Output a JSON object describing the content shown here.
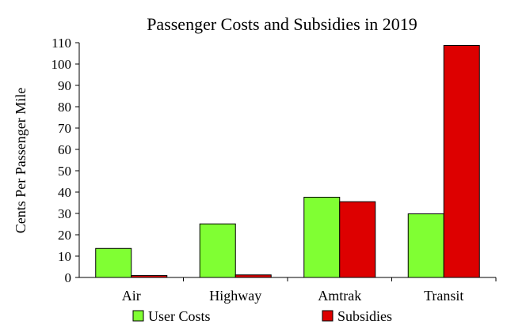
{
  "chart_data": {
    "type": "bar",
    "title": "Passenger Costs and Subsidies in 2019",
    "xlabel": "",
    "ylabel": "Cents Per Passenger Mile",
    "ylim": [
      0,
      110
    ],
    "yticks": [
      0,
      10,
      20,
      30,
      40,
      50,
      60,
      70,
      80,
      90,
      100,
      110
    ],
    "categories": [
      "Air",
      "Highway",
      "Amtrak",
      "Transit"
    ],
    "series": [
      {
        "name": "User Costs",
        "color": "#80ff33",
        "values": [
          13.6,
          25.1,
          37.6,
          29.8
        ]
      },
      {
        "name": "Subsidies",
        "color": "#dd0000",
        "values": [
          0.9,
          1.2,
          35.5,
          108.7
        ]
      }
    ],
    "grid": false,
    "legend_position": "bottom"
  }
}
